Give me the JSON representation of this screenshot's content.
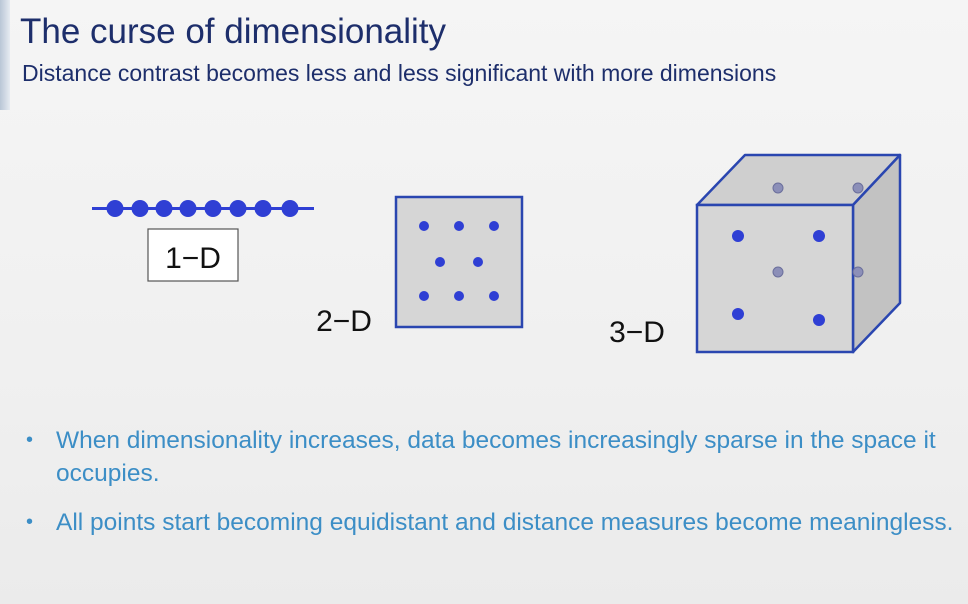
{
  "title": "The curse of dimensionality",
  "subtitle": "Distance contrast becomes less and less significant with more dimensions",
  "diagram": {
    "label_1d": "1−D",
    "label_2d": "2−D",
    "label_3d": "3−D",
    "colors": {
      "point": "#2f3fd4",
      "point_faded": "#8c8fb8",
      "outline": "#2a46b0",
      "box_fill": "#d6d6d6",
      "cube_top": "#cfcfcf",
      "cube_side": "#c2c2c2"
    }
  },
  "bullets": [
    "When dimensionality increases, data becomes increasingly sparse in the space it occupies.",
    "All points start becoming equidistant and distance measures become meaningless."
  ],
  "bullet_symbol": "•"
}
